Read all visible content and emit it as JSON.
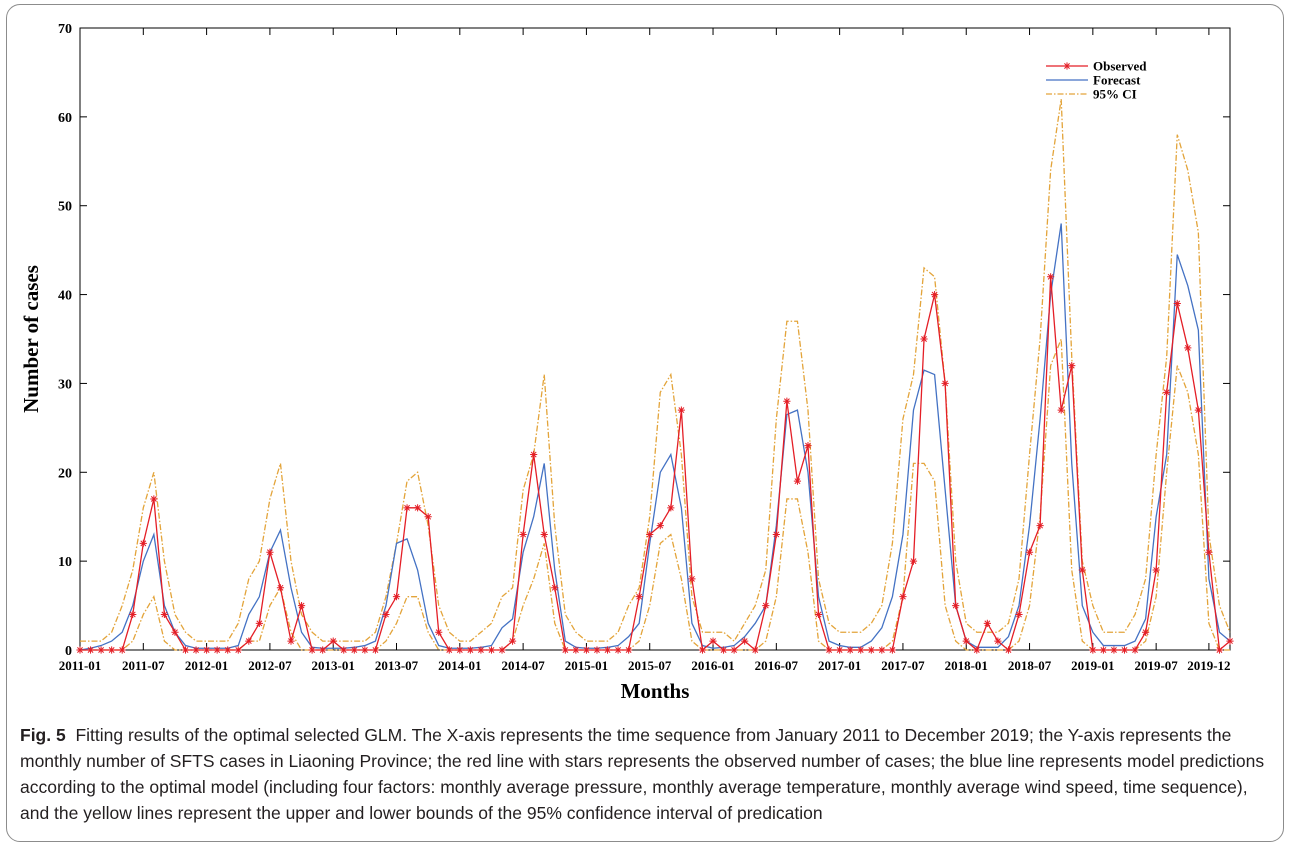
{
  "chart_data": {
    "type": "line",
    "title": "",
    "xlabel": "Months",
    "ylabel": "Number of cases",
    "ylim": [
      0,
      70
    ],
    "yticks": [
      0,
      10,
      20,
      30,
      40,
      50,
      60,
      70
    ],
    "x_start": "2011-01",
    "x_end": "2019-12",
    "xticks": [
      "2011-01",
      "2011-07",
      "2012-01",
      "2012-07",
      "2013-01",
      "2013-07",
      "2014-01",
      "2014-07",
      "2015-01",
      "2015-07",
      "2016-01",
      "2016-07",
      "2017-01",
      "2017-07",
      "2018-01",
      "2018-07",
      "2019-01",
      "2019-07",
      "2019-12"
    ],
    "grid": false,
    "legend_position": "top-right",
    "series": [
      {
        "name": "Observed",
        "color": "#e41e26",
        "marker": "star",
        "values": [
          0,
          0,
          0,
          0,
          0,
          4,
          12,
          17,
          4,
          2,
          0,
          0,
          0,
          0,
          0,
          0,
          1,
          3,
          11,
          7,
          1,
          5,
          0,
          0,
          1,
          0,
          0,
          0,
          0,
          4,
          6,
          16,
          16,
          15,
          2,
          0,
          0,
          0,
          0,
          0,
          0,
          1,
          13,
          22,
          13,
          7,
          0,
          0,
          0,
          0,
          0,
          0,
          0,
          6,
          13,
          14,
          16,
          27,
          8,
          0,
          1,
          0,
          0,
          1,
          0,
          5,
          13,
          28,
          19,
          23,
          4,
          0,
          0,
          0,
          0,
          0,
          0,
          0,
          6,
          10,
          35,
          40,
          30,
          5,
          1,
          0,
          3,
          1,
          0,
          4,
          11,
          14,
          42,
          27,
          32,
          9,
          0,
          0,
          0,
          0,
          0,
          2,
          9,
          29,
          39,
          34,
          27,
          11,
          0,
          1
        ]
      },
      {
        "name": "Forecast",
        "color": "#4472c4",
        "values": [
          0,
          0.2,
          0.5,
          1,
          2,
          5,
          10,
          13,
          5,
          2,
          0.5,
          0.2,
          0.2,
          0.2,
          0.2,
          0.5,
          4,
          6,
          11,
          13.5,
          7,
          2,
          0.3,
          0.2,
          0.2,
          0.2,
          0.3,
          0.5,
          1,
          5,
          12,
          12.5,
          9,
          3,
          0.5,
          0.2,
          0.2,
          0.2,
          0.3,
          0.5,
          2.5,
          3.5,
          11,
          15,
          21,
          9,
          1,
          0.3,
          0.2,
          0.2,
          0.3,
          0.5,
          1.5,
          3,
          12,
          20,
          22,
          16,
          3,
          0.5,
          0.2,
          0.3,
          0.5,
          1.5,
          3,
          5,
          14,
          26.5,
          27,
          20,
          6,
          1,
          0.5,
          0.3,
          0.3,
          1,
          2.5,
          6,
          13,
          27,
          31.5,
          31,
          18,
          5,
          1,
          0.3,
          0.3,
          0.3,
          1.5,
          5,
          14,
          26,
          40,
          48,
          21,
          5,
          2,
          0.5,
          0.5,
          0.5,
          1,
          3.5,
          15,
          22,
          44.5,
          41,
          36,
          8,
          2,
          1
        ]
      },
      {
        "name": "95% CI",
        "color": "#e3a43a",
        "upper": [
          1,
          1,
          1,
          2,
          5,
          9,
          16,
          20,
          10,
          4,
          2,
          1,
          1,
          1,
          1,
          3,
          8,
          10,
          17,
          21,
          10,
          4,
          2,
          1,
          1,
          1,
          1,
          1,
          2,
          6,
          12,
          19,
          20,
          14,
          5,
          2,
          1,
          1,
          2,
          3,
          6,
          7,
          18,
          22,
          31,
          14,
          4,
          2,
          1,
          1,
          1,
          2,
          5,
          7,
          15,
          29,
          31,
          22,
          6,
          2,
          2,
          2,
          1,
          3,
          5,
          9,
          26,
          37,
          37,
          27,
          8,
          3,
          2,
          2,
          2,
          3,
          5,
          12,
          26,
          31,
          43,
          42,
          30,
          10,
          3,
          2,
          2,
          2,
          3,
          8,
          22,
          35,
          54,
          62,
          33,
          10,
          5,
          2,
          2,
          2,
          4,
          8,
          22,
          33,
          58,
          54,
          47,
          13,
          5,
          2
        ],
        "lower": [
          0,
          0,
          0,
          0,
          0,
          1,
          4,
          6,
          1,
          0,
          0,
          0,
          0,
          0,
          0,
          0,
          1,
          1,
          5,
          7,
          2,
          0,
          0,
          0,
          0,
          0,
          0,
          0,
          0,
          1,
          3,
          6,
          6,
          2,
          0,
          0,
          0,
          0,
          0,
          0,
          0,
          1,
          5,
          8,
          12,
          3,
          0,
          0,
          0,
          0,
          0,
          0,
          0,
          1,
          5,
          12,
          13,
          8,
          1,
          0,
          0,
          0,
          0,
          0,
          0,
          1,
          6,
          17,
          17,
          11,
          1,
          0,
          0,
          0,
          0,
          0,
          0,
          1,
          6,
          21,
          21,
          19,
          5,
          1,
          0,
          0,
          0,
          0,
          0,
          1,
          5,
          15,
          32,
          35,
          9,
          1,
          0,
          0,
          0,
          0,
          0,
          1,
          6,
          20,
          32,
          29,
          22,
          3,
          0,
          0
        ]
      }
    ]
  },
  "caption": {
    "label": "Fig. 5",
    "text": "Fitting results of the optimal selected GLM. The X-axis represents the time sequence from January 2011 to December 2019; the Y-axis represents the monthly number of SFTS cases in Liaoning Province; the red line with stars represents the observed number of cases; the blue line represents model predictions according to the optimal model (including four factors: monthly average pressure, monthly average temperature, monthly average wind speed, time sequence), and the yellow lines represent the upper and lower bounds of the 95% confidence interval of predication"
  }
}
